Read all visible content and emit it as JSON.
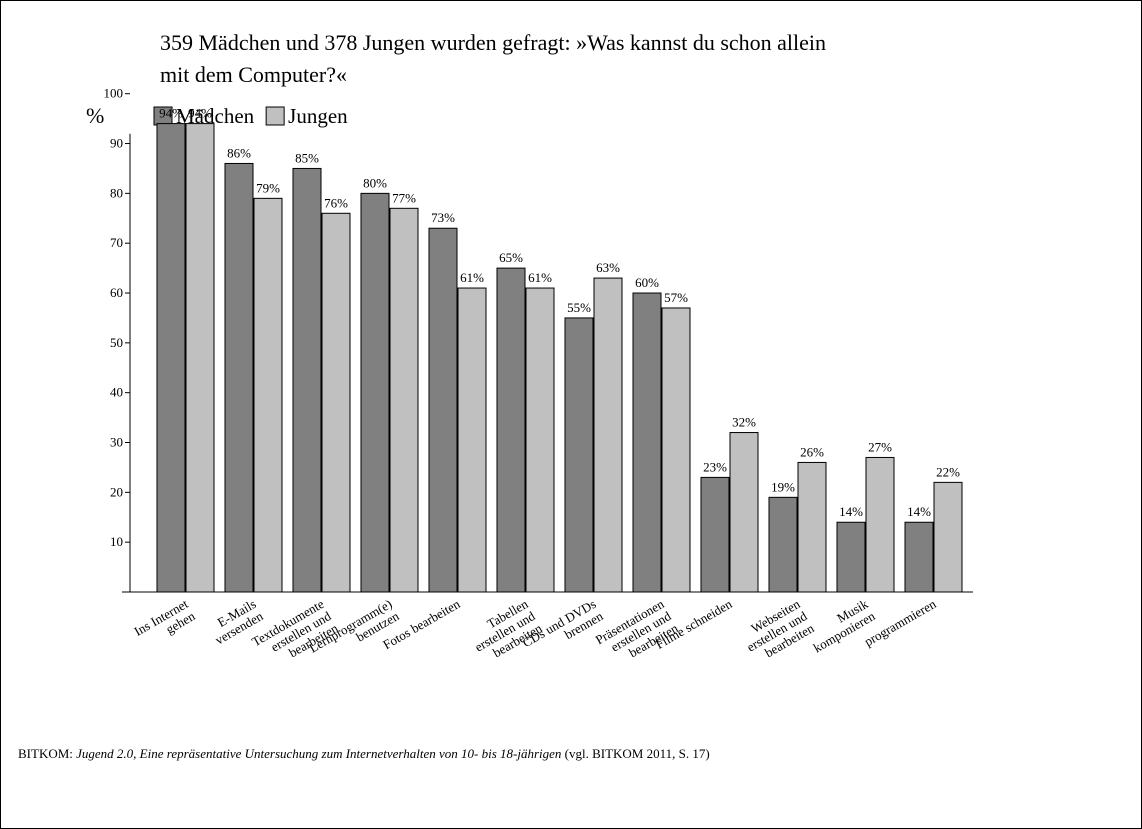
{
  "chart_data": {
    "type": "bar",
    "title": [
      "359 Mädchen und 378 Jungen wurden gefragt: »Was kannst du schon allein",
      "mit dem Computer?«"
    ],
    "y_label": "%",
    "categories": [
      [
        "Ins Internet",
        "gehen"
      ],
      [
        "E-Mails",
        "versenden"
      ],
      [
        "Textdokumente",
        "erstellen und",
        "bearbeiten"
      ],
      [
        "Lernprogramm(e)",
        "benutzen"
      ],
      [
        "Fotos bearbeiten"
      ],
      [
        "Tabellen",
        "erstellen und",
        "bearbeiten"
      ],
      [
        "CDs und DVDs",
        "brennen"
      ],
      [
        "Präsentationen",
        "erstellen und",
        "bearbeiten"
      ],
      [
        "Filme schneiden"
      ],
      [
        "Webseiten",
        "erstellen und",
        "bearbeiten"
      ],
      [
        "Musik",
        "komponieren"
      ],
      [
        "programmieren"
      ]
    ],
    "series": [
      {
        "name": "Mädchen",
        "color": "#808080",
        "values": [
          94,
          86,
          85,
          80,
          73,
          65,
          55,
          60,
          23,
          19,
          14,
          14
        ],
        "value_labels": [
          "94%",
          "86%",
          "85%",
          "80%",
          "73%",
          "65%",
          "55%",
          "60%",
          "23%",
          "19%",
          "14%",
          "14%"
        ]
      },
      {
        "name": "Jungen",
        "color": "#c0c0c0",
        "values": [
          94,
          79,
          76,
          77,
          61,
          61,
          63,
          57,
          32,
          26,
          27,
          22
        ],
        "value_labels": [
          "94%",
          "79%",
          "76%",
          "77%",
          "61%",
          "61%",
          "63%",
          "57%",
          "32%",
          "26%",
          "27%",
          "22%"
        ]
      }
    ],
    "ylim": [
      0,
      100
    ],
    "yticks": [
      10,
      20,
      30,
      40,
      50,
      60,
      70,
      80,
      90,
      100
    ],
    "source_prefix": "BITKOM:",
    "source_title": "Jugend 2.0, Eine repräsentative Untersuchung zum Internetverhalten von 10- bis 18-jährigen",
    "source_suffix": "(vgl. BITKOM 2011, S. 17)"
  }
}
